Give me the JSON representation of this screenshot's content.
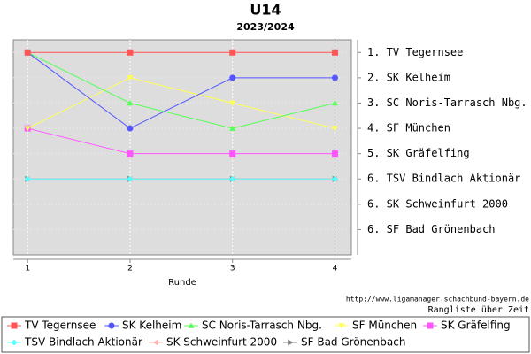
{
  "chart_data": {
    "type": "line",
    "title": "U14",
    "subtitle": "2023/2024",
    "x_label": "Runde",
    "source": "http://www.ligamanager.schachbund-bayern.de",
    "caption": "Rangliste über Zeit",
    "x": [
      1,
      2,
      3,
      4
    ],
    "xlim": [
      0.86,
      4.16
    ],
    "xticks": [
      1,
      2,
      3,
      4
    ],
    "ylim": [
      0.5,
      9
    ],
    "y_inverted": true,
    "yticks": [
      {
        "value": 1,
        "label": "1. TV Tegernsee"
      },
      {
        "value": 2,
        "label": "2. SK Kelheim"
      },
      {
        "value": 3,
        "label": "3. SC Noris-Tarrasch Nbg."
      },
      {
        "value": 4,
        "label": "4. SF München"
      },
      {
        "value": 5,
        "label": "5. SK Gräfelfing"
      },
      {
        "value": 6,
        "label": "6. TSV Bindlach Aktionär"
      },
      {
        "value": 7,
        "label": "6. SK Schweinfurt 2000"
      },
      {
        "value": 8,
        "label": "6. SF Bad Grönenbach"
      }
    ],
    "grid": true,
    "series": [
      {
        "name": "TV Tegernsee",
        "color": "#ff5555",
        "marker": "square",
        "values": [
          1,
          1,
          1,
          1
        ]
      },
      {
        "name": "SK Kelheim",
        "color": "#5555ff",
        "marker": "circle",
        "values": [
          1,
          4,
          2,
          2
        ]
      },
      {
        "name": "SC Noris-Tarrasch Nbg.",
        "color": "#55ff55",
        "marker": "triangle-up",
        "values": [
          1,
          3,
          4,
          3
        ]
      },
      {
        "name": "SF München",
        "color": "#ffff55",
        "marker": "triangle-down",
        "values": [
          4,
          2,
          3,
          4
        ]
      },
      {
        "name": "SK Gräfelfing",
        "color": "#ff55ff",
        "marker": "square",
        "values": [
          4,
          5,
          5,
          5
        ]
      },
      {
        "name": "TSV Bindlach Aktionär",
        "color": "#55ffff",
        "marker": "diamond",
        "values": [
          6,
          6,
          6,
          6
        ]
      },
      {
        "name": "SK Schweinfurt 2000",
        "color": "#ffafaf",
        "marker": "triangle-left",
        "values": [
          6,
          6,
          6,
          6
        ]
      },
      {
        "name": "SF Bad Grönenbach",
        "color": "#808080",
        "marker": "triangle-right",
        "values": [
          6,
          6,
          6,
          6
        ]
      }
    ]
  }
}
